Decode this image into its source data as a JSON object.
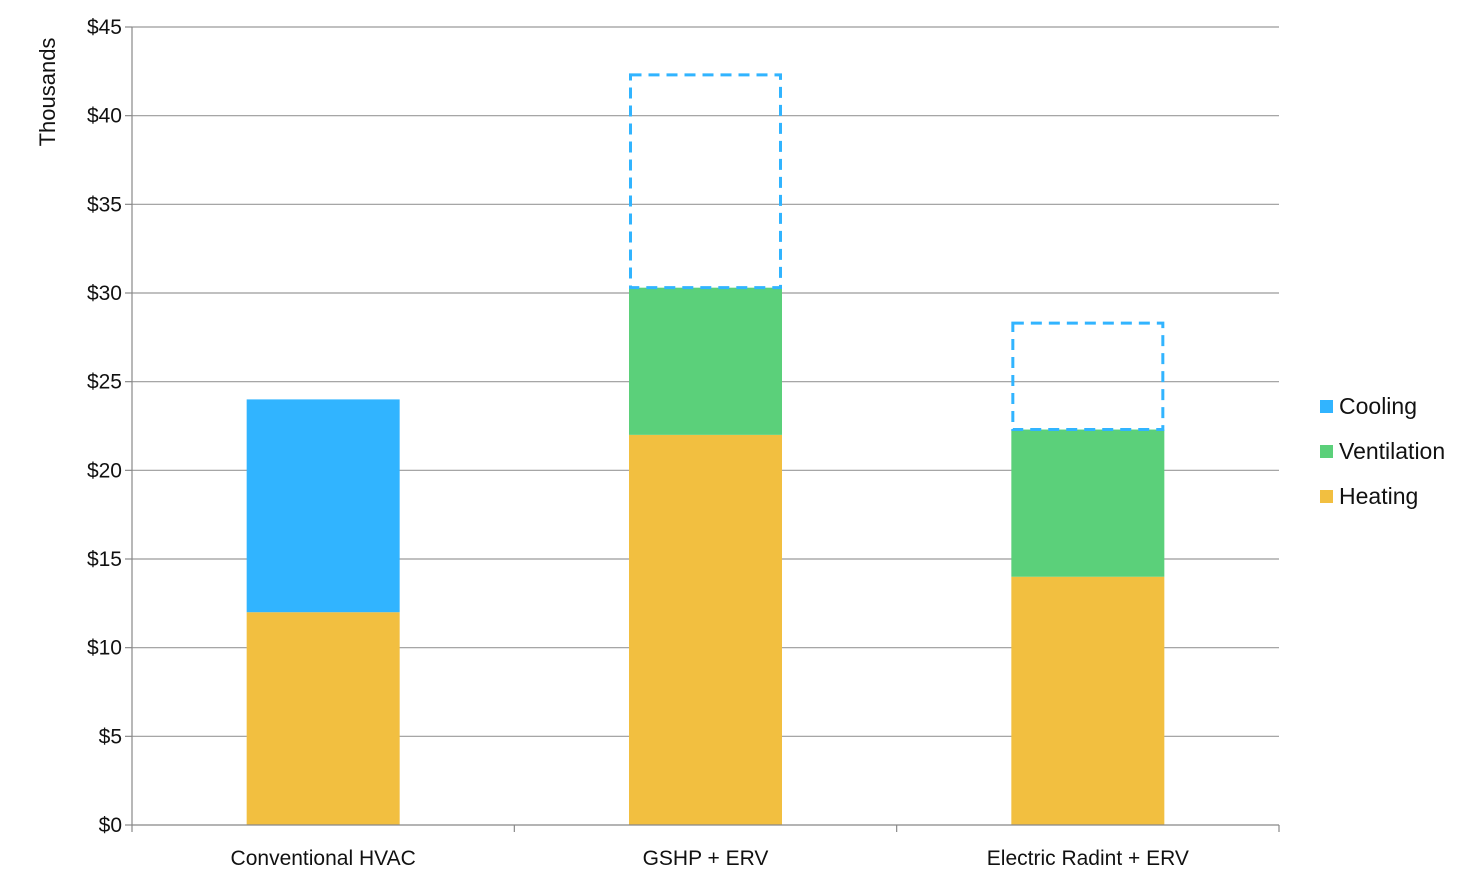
{
  "chart_data": {
    "type": "bar",
    "stacked": true,
    "categories": [
      "Conventional HVAC",
      "GSHP + ERV",
      "Electric Radint + ERV"
    ],
    "series": [
      {
        "name": "Heating",
        "color": "#F2BF40",
        "values": [
          12,
          22,
          14
        ]
      },
      {
        "name": "Ventilation",
        "color": "#5BD07A",
        "values": [
          0,
          8.3,
          8.3
        ]
      },
      {
        "name": "Cooling",
        "color": "#31B4FF",
        "values": [
          12,
          0,
          0
        ]
      }
    ],
    "potential_cooling_dashed": {
      "color": "#31B4FF",
      "values": [
        null,
        12,
        6
      ]
    },
    "ylabel": "Thousands",
    "ylim": [
      0,
      45
    ],
    "yticks": [
      "$0",
      "$5",
      "$10",
      "$15",
      "$20",
      "$25",
      "$30",
      "$35",
      "$40",
      "$45"
    ],
    "grid": true,
    "legend_position": "right",
    "legend_order": [
      "Cooling",
      "Ventilation",
      "Heating"
    ]
  }
}
